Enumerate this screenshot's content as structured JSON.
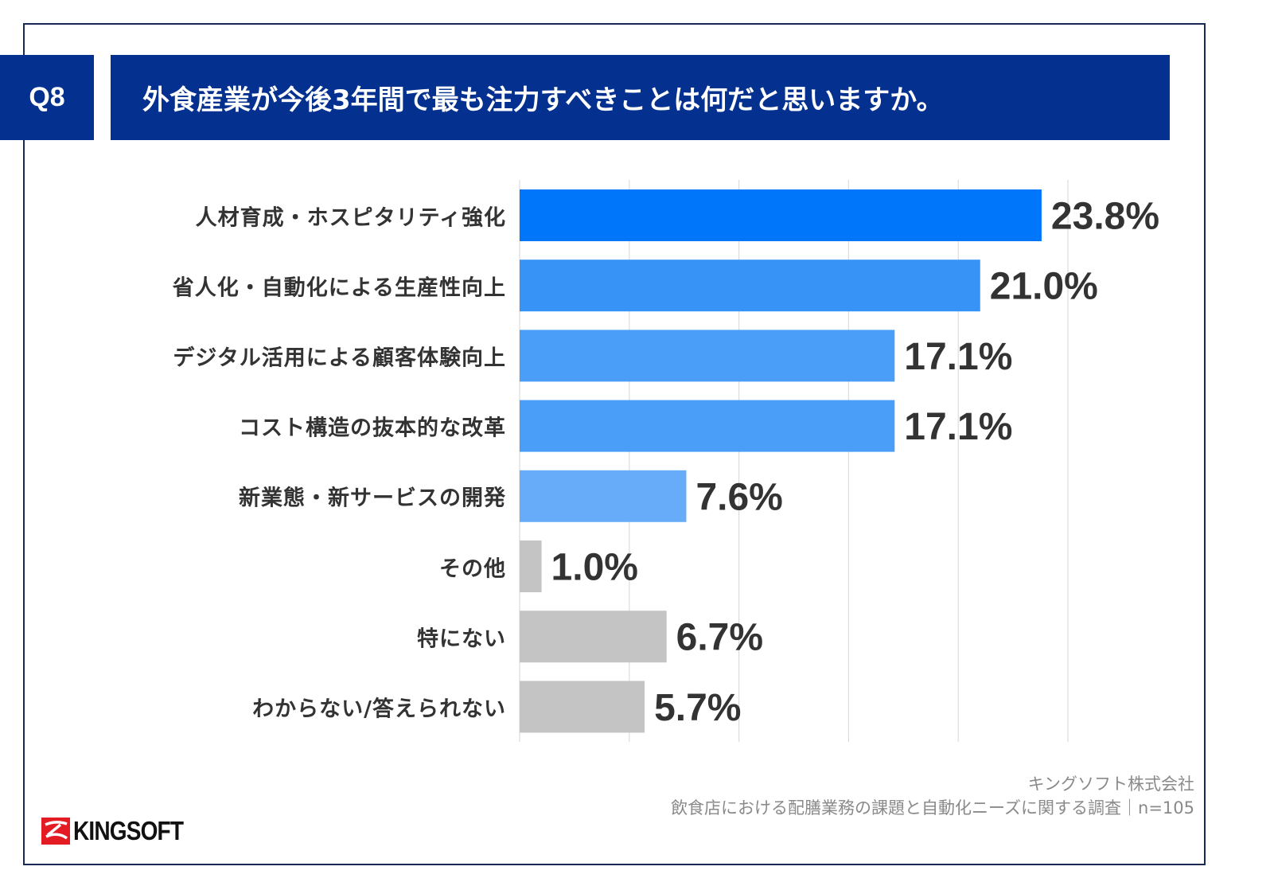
{
  "header": {
    "question_id": "Q8",
    "title": "外食産業が今後3年間で最も注力すべきことは何だと思いますか。"
  },
  "chart_data": {
    "type": "bar",
    "orientation": "horizontal",
    "title": "外食産業が今後3年間で最も注力すべきことは何だと思いますか。",
    "categories": [
      "人材育成・ホスピタリティ強化",
      "省人化・自動化による生産性向上",
      "デジタル活用による顧客体験向上",
      "コスト構造の抜本的な改革",
      "新業態・新サービスの開発",
      "その他",
      "特にない",
      "わからない/答えられない"
    ],
    "values": [
      23.8,
      21.0,
      17.1,
      17.1,
      7.6,
      1.0,
      6.7,
      5.7
    ],
    "value_labels": [
      "23.8%",
      "21.0%",
      "17.1%",
      "17.1%",
      "7.6%",
      "1.0%",
      "6.7%",
      "5.7%"
    ],
    "colors": [
      "#0077fb",
      "#3893f7",
      "#4b9ef8",
      "#4b9ef8",
      "#66acf9",
      "#c4c4c4",
      "#c4c4c4",
      "#c4c4c4"
    ],
    "xlim": [
      0,
      25
    ],
    "grid_step": 5,
    "grid": true,
    "unit": "%"
  },
  "footer": {
    "company": "キングソフト株式会社",
    "survey": "飲食店における配膳業務の課題と自動化ニーズに関する調査｜n=105",
    "logo_text": "KINGSOFT"
  },
  "colors": {
    "header_bg": "#04318f",
    "frame_border": "#1b2a55",
    "logo_red": "#e31c23"
  }
}
